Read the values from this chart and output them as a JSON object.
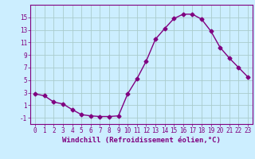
{
  "x": [
    0,
    1,
    2,
    3,
    4,
    5,
    6,
    7,
    8,
    9,
    10,
    11,
    12,
    13,
    14,
    15,
    16,
    17,
    18,
    19,
    20,
    21,
    22,
    23
  ],
  "y": [
    2.8,
    2.5,
    1.5,
    1.2,
    0.3,
    -0.5,
    -0.7,
    -0.8,
    -0.8,
    -0.7,
    2.8,
    5.2,
    8.0,
    11.5,
    13.2,
    14.8,
    15.5,
    15.5,
    14.7,
    12.8,
    10.2,
    8.5,
    7.0,
    5.5
  ],
  "line_color": "#800080",
  "marker": "D",
  "marker_size": 2.5,
  "bg_color": "#cceeff",
  "grid_color": "#aacccc",
  "xlabel": "Windchill (Refroidissement éolien,°C)",
  "xlim": [
    -0.5,
    23.5
  ],
  "ylim": [
    -2,
    17
  ],
  "yticks": [
    -1,
    1,
    3,
    5,
    7,
    9,
    11,
    13,
    15
  ],
  "xtick_labels": [
    "0",
    "1",
    "2",
    "3",
    "4",
    "5",
    "6",
    "7",
    "8",
    "9",
    "10",
    "11",
    "12",
    "13",
    "14",
    "15",
    "16",
    "17",
    "18",
    "19",
    "20",
    "21",
    "22",
    "23"
  ],
  "tick_fontsize": 5.5,
  "xlabel_fontsize": 6.5,
  "label_color": "#800080"
}
